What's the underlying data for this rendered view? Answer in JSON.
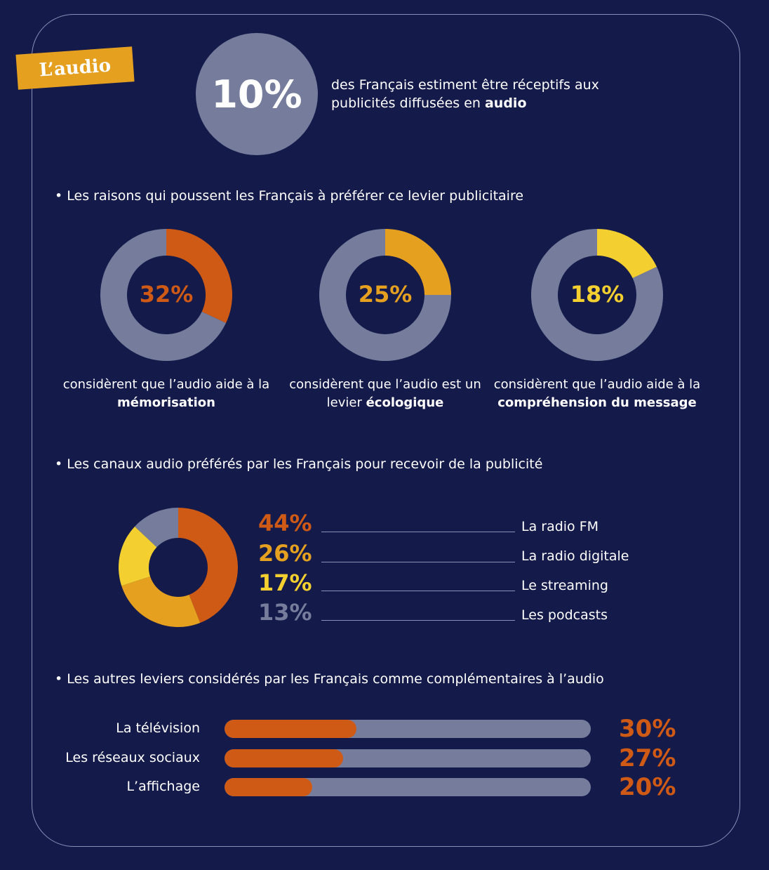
{
  "tag": "L’audio",
  "headline": {
    "value": "10%",
    "text": "des Français estiment être réceptifs aux publicités diffusées en ",
    "bold": "audio"
  },
  "sections": [
    "Les raisons qui poussent les Français à préférer ce levier publicitaire",
    "Les canaux audio préférés par les Français pour recevoir de la publicité",
    "Les autres leviers considérés par les Français comme complémentaires à l’audio"
  ],
  "colors": {
    "background": "#141a4a",
    "grey": "#767c9c",
    "orange": "#cf5a16",
    "amber": "#e5a020",
    "yellow": "#f3d030"
  },
  "chart_data": [
    {
      "type": "pie",
      "variant": "donut",
      "label": "32%",
      "values": [
        32,
        68
      ],
      "color": "#cf5a16",
      "caption": "considèrent que l’audio aide à la ",
      "caption_bold": "mémorisation"
    },
    {
      "type": "pie",
      "variant": "donut",
      "label": "25%",
      "values": [
        25,
        75
      ],
      "color": "#e5a020",
      "caption": "considèrent que l’audio est un levier ",
      "caption_bold": "écologique"
    },
    {
      "type": "pie",
      "variant": "donut",
      "label": "18%",
      "values": [
        18,
        82
      ],
      "color": "#f3d030",
      "caption": "considèrent que l’audio aide à la ",
      "caption_bold": "compréhension du message"
    },
    {
      "type": "pie",
      "variant": "donut",
      "categories": [
        "La radio FM",
        "La radio digitale",
        "Le streaming",
        "Les podcasts"
      ],
      "values": [
        44,
        26,
        17,
        13
      ],
      "labels": [
        "44%",
        "26%",
        "17%",
        "13%"
      ],
      "colors": [
        "#cf5a16",
        "#e5a020",
        "#f3d030",
        "#767c9c"
      ]
    },
    {
      "type": "bar",
      "orientation": "horizontal",
      "categories": [
        "La télévision",
        "Les réseaux sociaux",
        "L’affichage"
      ],
      "values": [
        30,
        27,
        20
      ],
      "labels": [
        "30%",
        "27%",
        "20%"
      ],
      "xlim": [
        0,
        100
      ]
    }
  ]
}
